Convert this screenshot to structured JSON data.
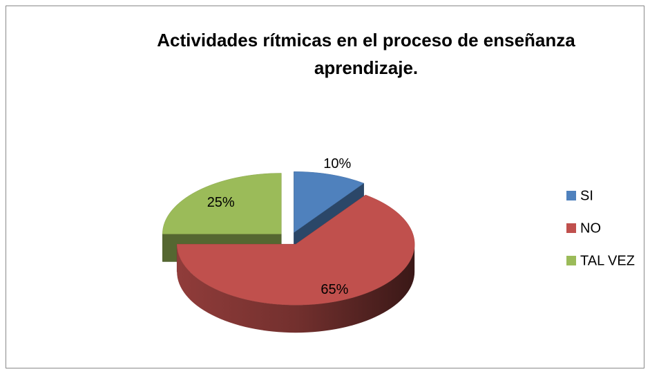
{
  "chart_data": {
    "type": "pie",
    "title": "Actividades rítmicas en el proceso de enseñanza aprendizaje.",
    "categories": [
      "SI",
      "NO",
      "TAL VEZ"
    ],
    "values": [
      10,
      65,
      25
    ],
    "value_labels": [
      "10%",
      "65%",
      "25%"
    ],
    "colors": [
      "#4f81bd",
      "#c0504d",
      "#9bbb59"
    ],
    "legend": "right",
    "three_d": true,
    "exploded": true
  }
}
